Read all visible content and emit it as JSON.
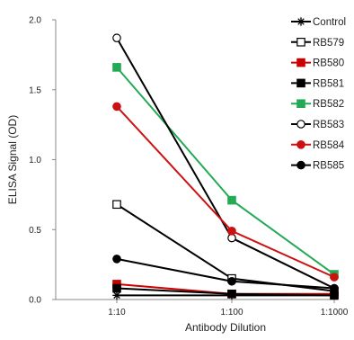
{
  "chart_data": {
    "type": "line",
    "title": "",
    "xlabel": "Antibody Dilution",
    "ylabel": "ELISA Signal (OD)",
    "categories": [
      "1:10",
      "1:100",
      "1:1000"
    ],
    "ylim": [
      0,
      2.0
    ],
    "yticks": [
      "0.0",
      "0.5",
      "1.0",
      "1.5",
      "2.0"
    ],
    "grid": false,
    "legend_position": "top-right",
    "series": [
      {
        "name": "Control",
        "values": [
          0.03,
          0.03,
          0.03
        ],
        "color": "#000000",
        "marker": "star"
      },
      {
        "name": "RB579",
        "values": [
          0.68,
          0.15,
          0.06
        ],
        "color": "#000000",
        "marker": "square-open"
      },
      {
        "name": "RB580",
        "values": [
          0.11,
          0.04,
          0.04
        ],
        "color": "#cc0000",
        "marker": "square"
      },
      {
        "name": "RB581",
        "values": [
          0.08,
          0.04,
          0.03
        ],
        "color": "#000000",
        "marker": "square"
      },
      {
        "name": "RB582",
        "values": [
          1.66,
          0.71,
          0.18
        ],
        "color": "#22aa55",
        "marker": "square"
      },
      {
        "name": "RB583",
        "values": [
          1.87,
          0.44,
          0.08
        ],
        "color": "#000000",
        "marker": "circle-open"
      },
      {
        "name": "RB584",
        "values": [
          1.38,
          0.49,
          0.16
        ],
        "color": "#cc1111",
        "marker": "circle"
      },
      {
        "name": "RB585",
        "values": [
          0.29,
          0.13,
          0.08
        ],
        "color": "#000000",
        "marker": "circle"
      }
    ]
  }
}
